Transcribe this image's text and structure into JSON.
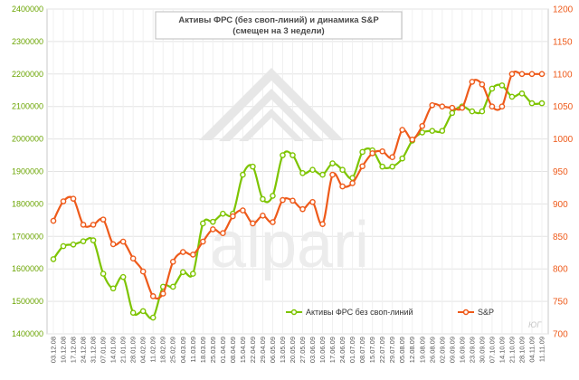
{
  "chart_data": {
    "type": "line",
    "title_line1": "Активы ФРС (без своп-линий)  и динамика S&P",
    "title_line2": "(смещен на 3 недели)",
    "x": [
      "03.12.08",
      "10.12.08",
      "17.12.08",
      "24.12.08",
      "31.12.08",
      "07.01.09",
      "14.01.09",
      "21.01.09",
      "28.01.09",
      "04.02.09",
      "11.02.09",
      "18.02.09",
      "25.02.09",
      "04.03.09",
      "11.03.09",
      "18.03.09",
      "25.03.09",
      "01.04.09",
      "08.04.09",
      "15.04.09",
      "22.04.09",
      "29.04.09",
      "06.05.09",
      "13.05.09",
      "20.05.09",
      "27.05.09",
      "03.06.09",
      "10.06.09",
      "17.06.09",
      "24.06.09",
      "01.07.09",
      "08.07.09",
      "15.07.09",
      "22.07.09",
      "29.07.09",
      "05.08.09",
      "12.08.09",
      "19.08.09",
      "26.08.09",
      "02.09.09",
      "09.09.09",
      "16.09.09",
      "23.09.09",
      "30.09.09",
      "07.10.09",
      "14.10.09",
      "21.10.09",
      "28.10.09",
      "04.11.09",
      "11.11.09"
    ],
    "xlabels_shown": [
      "03.12.08",
      "10.12.08",
      "17.12.08",
      "24.12.08",
      "31.12.08",
      "07.01.09",
      "14.01.09",
      "21.01.09",
      "28.01.09",
      "04.02.09",
      "11.02.09",
      "18.02.09",
      "25.02.09",
      "04.03.09",
      "11.03.09",
      "18.03.09",
      "25.03.09",
      "01.04.09",
      "08.04.09",
      "15.04.09",
      "22.04.09",
      "29.04.09",
      "06.05.09",
      "13.05.09",
      "20.05.09",
      "27.05.09",
      "03.06.09",
      "10.06.09",
      "17.06.09",
      "24.06.09",
      "01.07.09",
      "08.07.09",
      "15.07.09",
      "22.07.09",
      "29.07.09",
      "05.08.09",
      "12.08.09",
      "19.08.09",
      "26.08.09",
      "02.09.09",
      "09.09.09",
      "16.09.09",
      "23.09.09",
      "30.09.09",
      "07.10.09",
      "14.10.09",
      "21.10.09",
      "28.10.09",
      "04.11.09",
      "11.11.09"
    ],
    "series": [
      {
        "name": "Активы ФРС без своп-линий",
        "axis": "left",
        "color": "#7dc400",
        "values": [
          1630000,
          1670000,
          1675000,
          1685000,
          1688000,
          1585000,
          1540000,
          1575000,
          1465000,
          1470000,
          1450000,
          1545000,
          1545000,
          1590000,
          1585000,
          1740000,
          1745000,
          1770000,
          1770000,
          1890000,
          1915000,
          1815000,
          1825000,
          1950000,
          1950000,
          1895000,
          1905000,
          1890000,
          1925000,
          1905000,
          1880000,
          1960000,
          1965000,
          1915000,
          1915000,
          1940000,
          1995000,
          2020000,
          2025000,
          2025000,
          2080000,
          2100000,
          2085000,
          2085000,
          2155000,
          2165000,
          2130000,
          2140000,
          2110000,
          2110000
        ]
      },
      {
        "name": "S&P",
        "axis": "right",
        "color": "#ee5a1a",
        "values": [
          874,
          904,
          908,
          868,
          868,
          876,
          838,
          842,
          816,
          796,
          758,
          762,
          811,
          826,
          822,
          842,
          861,
          855,
          881,
          890,
          870,
          882,
          872,
          906,
          905,
          892,
          903,
          869,
          945,
          927,
          932,
          958,
          978,
          981,
          972,
          1014,
          999,
          1020,
          1052,
          1050,
          1048,
          1048,
          1088,
          1084,
          1050,
          1050,
          1100,
          1100,
          1100,
          1100
        ]
      }
    ],
    "y_left": {
      "min": 1400000,
      "max": 2400000,
      "step": 100000
    },
    "y_right": {
      "min": 700,
      "max": 1200,
      "step": 50
    },
    "y_left_ticks": [
      "1400000",
      "1500000",
      "1600000",
      "1700000",
      "1800000",
      "1900000",
      "2000000",
      "2100000",
      "2200000",
      "2300000",
      "2400000"
    ],
    "y_right_ticks": [
      "700",
      "750",
      "800",
      "850",
      "900",
      "950",
      "1000",
      "1050",
      "1100",
      "1150",
      "1200"
    ],
    "legend_position": "bottom-right",
    "grid": true,
    "watermark": "alpari",
    "corner_mark": "ЮГ"
  }
}
